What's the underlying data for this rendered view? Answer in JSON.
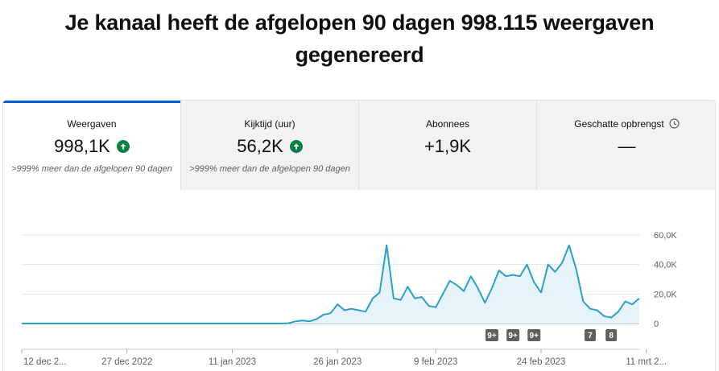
{
  "headline": {
    "line1": "Je kanaal heeft de afgelopen 90 dagen 998.115 weergaven",
    "line2": "gegenereerd"
  },
  "tabs": [
    {
      "label": "Weergaven",
      "value": "998,1K",
      "trend": "up",
      "change": ">999% meer dan de afgelopen 90 dagen",
      "active": true
    },
    {
      "label": "Kijktijd (uur)",
      "value": "56,2K",
      "trend": "up",
      "change": ">999% meer dan de afgelopen 90 dagen",
      "active": false
    },
    {
      "label": "Abonnees",
      "value": "+1,9K",
      "trend": "",
      "change": "",
      "active": false
    },
    {
      "label": "Geschatte opbrengst",
      "value": "—",
      "trend": "",
      "change": "",
      "active": false,
      "icon": "clock-icon"
    }
  ],
  "colors": {
    "accent": "#065fd4",
    "line": "#2aa1c8",
    "area": "#e6f3f9",
    "up": "#0b8043"
  },
  "chart_data": {
    "type": "area",
    "y_ticks": [
      "0",
      "20,0K",
      "40,0K",
      "60,0K"
    ],
    "y_tick_values": [
      0,
      20000,
      40000,
      60000
    ],
    "ylim": [
      0,
      60000
    ],
    "x_tick_labels": [
      {
        "label": "12 dec 2...",
        "day": 0
      },
      {
        "label": "27 dec 2022",
        "day": 15
      },
      {
        "label": "11 jan 2023",
        "day": 30
      },
      {
        "label": "26 jan 2023",
        "day": 45
      },
      {
        "label": "9 feb 2023",
        "day": 59
      },
      {
        "label": "24 feb 2023",
        "day": 74
      },
      {
        "label": "11 mrt 2...",
        "day": 89
      }
    ],
    "values": [
      0,
      0,
      0,
      0,
      0,
      0,
      0,
      0,
      0,
      0,
      0,
      0,
      0,
      0,
      0,
      0,
      0,
      0,
      0,
      0,
      0,
      0,
      0,
      0,
      0,
      0,
      0,
      0,
      0,
      0,
      0,
      0,
      0,
      0,
      0,
      0,
      0,
      0,
      200,
      1500,
      2000,
      1500,
      3000,
      6000,
      7000,
      13000,
      9000,
      10000,
      9000,
      8000,
      17000,
      21000,
      53000,
      17000,
      16000,
      25000,
      17000,
      18000,
      12000,
      11000,
      20000,
      29000,
      26000,
      22000,
      32000,
      24000,
      14000,
      24000,
      36000,
      32000,
      33000,
      32000,
      40000,
      28000,
      21000,
      40000,
      35000,
      41000,
      53000,
      37000,
      15000,
      10000,
      9000,
      5000,
      4000,
      8000,
      15000,
      13000,
      17000
    ],
    "annotations": [
      {
        "label": "9+",
        "day": 67
      },
      {
        "label": "9+",
        "day": 70
      },
      {
        "label": "9+",
        "day": 73
      },
      {
        "label": "7",
        "day": 81
      },
      {
        "label": "8",
        "day": 84
      }
    ]
  }
}
